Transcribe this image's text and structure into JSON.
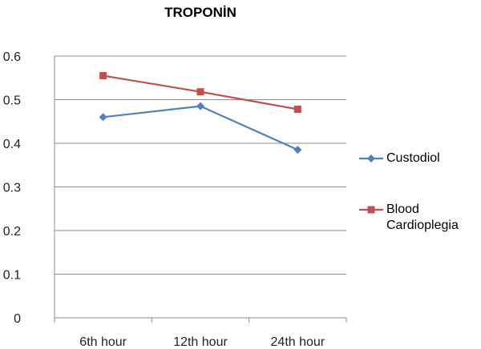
{
  "chart_data": {
    "type": "line",
    "title": "TROPONİN",
    "categories": [
      "6th hour",
      "12th hour",
      "24th hour"
    ],
    "series": [
      {
        "name": "Custodiol",
        "values": [
          0.46,
          0.485,
          0.385
        ],
        "color": "#4F81BD",
        "marker": "diamond"
      },
      {
        "name": "Blood Cardioplegia",
        "values": [
          0.555,
          0.518,
          0.478
        ],
        "color": "#C0504D",
        "marker": "square"
      }
    ],
    "ylim": [
      0,
      0.6
    ],
    "yticks": [
      0,
      0.1,
      0.2,
      0.3,
      0.4,
      0.5,
      0.6
    ],
    "ytick_labels": [
      "0",
      "0.1",
      "0.2",
      "0.3",
      "0.4",
      "0.5",
      "0.6"
    ],
    "grid": true,
    "legend_position": "right",
    "legend_lines": [
      [
        "Custodiol"
      ],
      [
        "Blood",
        "Cardioplegia"
      ]
    ]
  }
}
